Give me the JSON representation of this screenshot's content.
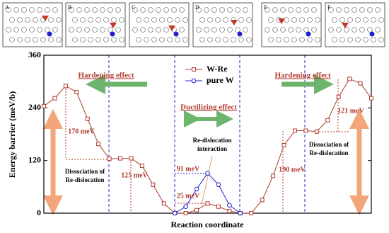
{
  "panels": [
    "A",
    "B",
    "C",
    "D",
    "E",
    "F"
  ],
  "chart_data": {
    "type": "line",
    "ylabel": "Energy barrier (meV/b)",
    "xlabel": "Reaction coordinate",
    "xlim": [
      0,
      30
    ],
    "ylim": [
      0,
      360
    ],
    "yticks": [
      0,
      120,
      240,
      360
    ],
    "legend": "upper center",
    "series": [
      {
        "name": "W-Re",
        "color": "#b03a2e",
        "marker": "square",
        "x": [
          0,
          1,
          2,
          3,
          4,
          5,
          6,
          7,
          8,
          9,
          10,
          11,
          12,
          13,
          14,
          15,
          16,
          17,
          18,
          19,
          20,
          21,
          22,
          23,
          24,
          25,
          26,
          27,
          28,
          29,
          30
        ],
        "values": [
          244,
          262,
          290,
          276,
          215,
          158,
          124,
          125,
          125,
          108,
          65,
          22,
          0,
          0,
          7,
          22,
          15,
          5,
          0,
          0,
          30,
          85,
          155,
          188,
          188,
          186,
          212,
          265,
          306,
          296,
          262
        ]
      },
      {
        "name": "pure W",
        "color": "#1f1fcc",
        "marker": "circle",
        "x": [
          12,
          13,
          14,
          15,
          16,
          17,
          18
        ],
        "values": [
          0,
          15,
          55,
          91,
          65,
          18,
          0
        ]
      }
    ],
    "annotations": {
      "hardening_left": "Hardening effect",
      "hardening_right": "Hardening effect",
      "ductilizing": "Ductilizing effect",
      "e170": "170 meV",
      "e125": "125 meV",
      "e91": "91 meV",
      "e25": "25 meV",
      "e190": "190 meV",
      "e121": "121 meV",
      "dissociation_left": [
        "Dissociation of",
        "Re-dislocation"
      ],
      "interaction": [
        "Re-dislocation",
        "interaction"
      ],
      "dissociation_right": [
        "Dissociation of",
        "Re-dislocation"
      ]
    }
  }
}
